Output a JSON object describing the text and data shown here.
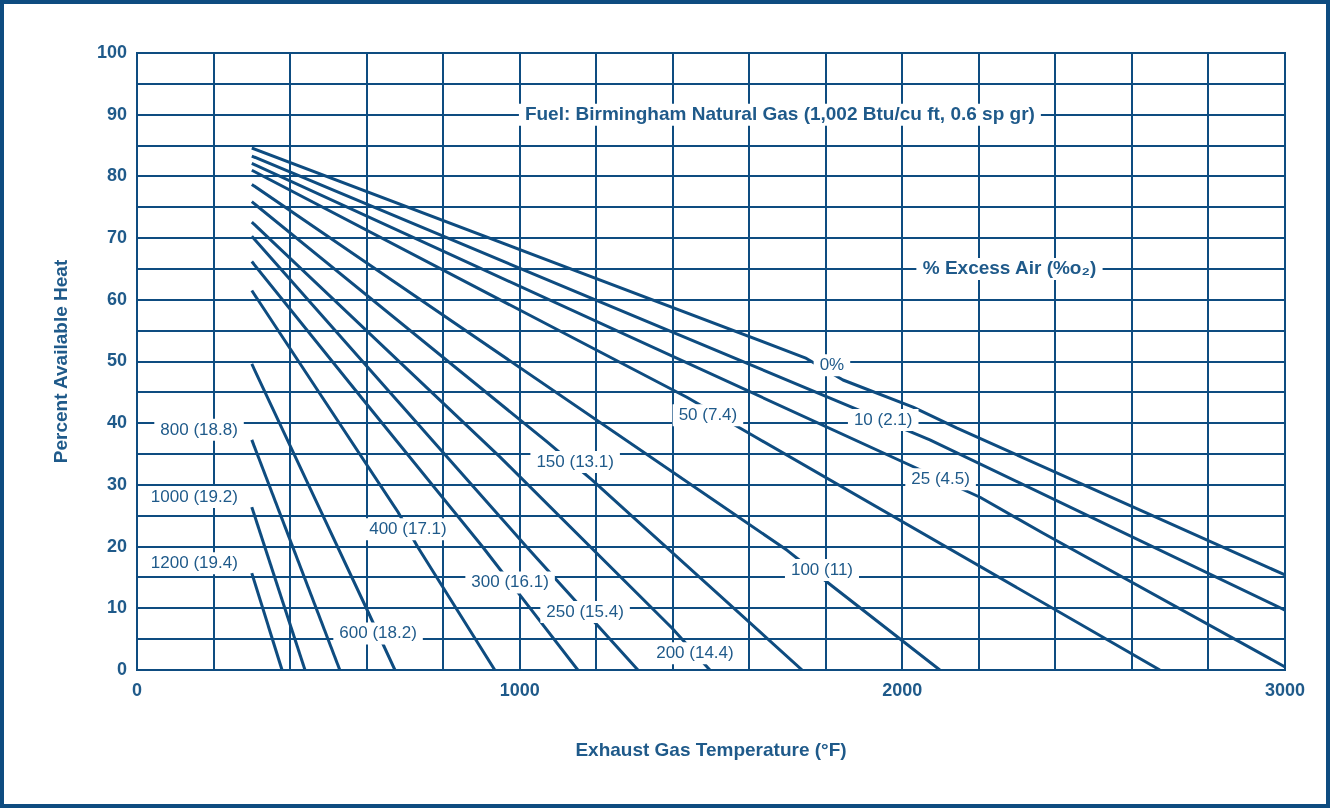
{
  "chart_data": {
    "type": "line",
    "xlabel": "Exhaust Gas Temperature (°F)",
    "ylabel": "Percent Available Heat",
    "xlim": [
      0,
      3000
    ],
    "ylim": [
      0,
      100
    ],
    "xticks": [
      0,
      {
        "value": 200,
        "label": null
      },
      {
        "value": 400,
        "label": null
      },
      {
        "value": 600,
        "label": null
      },
      {
        "value": 800,
        "label": null
      },
      1000,
      {
        "value": 1200,
        "label": null
      },
      {
        "value": 1400,
        "label": null
      },
      {
        "value": 1600,
        "label": null
      },
      {
        "value": 1800,
        "label": null
      },
      2000,
      {
        "value": 2200,
        "label": null
      },
      {
        "value": 2400,
        "label": null
      },
      {
        "value": 2600,
        "label": null
      },
      {
        "value": 2800,
        "label": null
      },
      3000
    ],
    "yticks": [
      0,
      {
        "value": 5,
        "label": null
      },
      10,
      {
        "value": 15,
        "label": null
      },
      20,
      {
        "value": 25,
        "label": null
      },
      30,
      {
        "value": 35,
        "label": null
      },
      40,
      {
        "value": 45,
        "label": null
      },
      50,
      {
        "value": 55,
        "label": null
      },
      60,
      {
        "value": 65,
        "label": null
      },
      70,
      {
        "value": 75,
        "label": null
      },
      80,
      {
        "value": 85,
        "label": null
      },
      90,
      {
        "value": 95,
        "label": null
      },
      100
    ],
    "grid": true,
    "legend": false,
    "marker": "none",
    "series": [
      {
        "color": "#0e4c80",
        "x": [
          300,
          1746,
          1845,
          2028,
          2143,
          3000
        ],
        "values": [
          84.6,
          50.6,
          47.0,
          42.6,
          39.2,
          15.4
        ]
      },
      {
        "color": "#0e4c80",
        "x": [
          300,
          2072,
          3000
        ],
        "values": [
          83.3,
          37.3,
          9.7
        ]
      },
      {
        "color": "#0e4c80",
        "x": [
          300,
          2203,
          2367,
          3000
        ],
        "values": [
          82.1,
          28.0,
          22.2,
          0.5
        ]
      },
      {
        "color": "#0e4c80",
        "x": [
          300,
          1437,
          1615,
          2673
        ],
        "values": [
          81.0,
          44.2,
          37.8,
          0
        ]
      },
      {
        "color": "#0e4c80",
        "x": [
          300,
          1699,
          1819,
          2098
        ],
        "values": [
          78.7,
          19.4,
          13.5,
          0
        ]
      },
      {
        "color": "#0e4c80",
        "x": [
          300,
          1071,
          1189,
          1738
        ],
        "values": [
          75.9,
          37.0,
          30.8,
          0
        ]
      },
      {
        "color": "#0e4c80",
        "x": [
          300,
          949,
          1398,
          1497
        ],
        "values": [
          72.6,
          34.5,
          6.8,
          0
        ]
      },
      {
        "color": "#0e4c80",
        "x": [
          300,
          1019,
          1309
        ],
        "values": [
          70.3,
          19.9,
          0
        ]
      },
      {
        "color": "#0e4c80",
        "x": [
          300,
          591,
          904,
          1152
        ],
        "values": [
          66.2,
          43.8,
          19.9,
          0
        ]
      },
      {
        "color": "#0e4c80",
        "x": [
          300,
          682,
          734,
          935
        ],
        "values": [
          61.5,
          25.6,
          19.9,
          0
        ]
      },
      {
        "color": "#0e4c80",
        "x": [
          300,
          604,
          674
        ],
        "values": [
          49.6,
          9.4,
          0
        ]
      },
      {
        "color": "#0e4c80",
        "x": [
          300,
          530
        ],
        "values": [
          37.3,
          0
        ]
      },
      {
        "color": "#0e4c80",
        "x": [
          300,
          439
        ],
        "values": [
          26.4,
          0
        ]
      },
      {
        "color": "#0e4c80",
        "x": [
          300,
          379
        ],
        "values": [
          15.7,
          0
        ]
      }
    ],
    "annotations": [
      "Fuel: Birmingham Natural Gas (1,002 Btu/cu ft, 0.6 sp gr)",
      "% Excess Air (%o₂)",
      {
        "text": "0%",
        "x": 1816,
        "y": 49.4
      },
      {
        "text": "10 (2.1)",
        "x": 1950,
        "y": 40.5
      },
      {
        "text": "25 (4.5)",
        "x": 2100,
        "y": 30.9
      },
      {
        "text": "50 (7.4)",
        "x": 1492,
        "y": 41.3
      },
      {
        "text": "100 (11)",
        "x": 1790,
        "y": 16.2
      },
      {
        "text": "150 (13.1)",
        "x": 1145,
        "y": 33.7
      },
      {
        "text": "200 (14.4)",
        "x": 1458,
        "y": 2.7
      },
      {
        "text": "250 (15.4)",
        "x": 1171,
        "y": 9.4
      },
      {
        "text": "300 (16.1)",
        "x": 975,
        "y": 14.2
      },
      {
        "text": "400 (17.1)",
        "x": 708,
        "y": 22.8
      },
      {
        "text": "600 (18.2)",
        "x": 630,
        "y": 5.9
      },
      {
        "text": "800 (18.8)",
        "x": 300,
        "y": 37.3
      },
      {
        "text": "1000 (19.2)",
        "x": 300,
        "y": 26.4
      },
      {
        "text": "1200 (19.4)",
        "x": 300,
        "y": 15.7
      }
    ]
  }
}
